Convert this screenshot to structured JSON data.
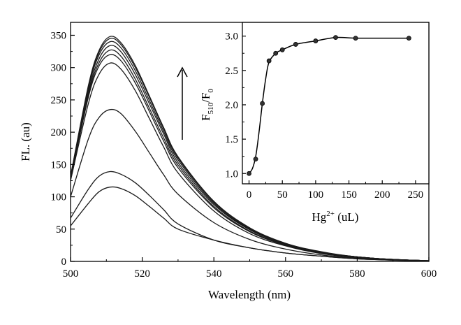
{
  "chart_data": [
    {
      "type": "line",
      "xlabel": "Wavelength (nm)",
      "ylabel": "FL. (au)",
      "xlim": [
        500,
        600
      ],
      "ylim": [
        0,
        370
      ],
      "xticks": [
        500,
        520,
        540,
        560,
        580,
        600
      ],
      "yticks": [
        0,
        50,
        100,
        150,
        200,
        250,
        300,
        350
      ],
      "grid": false,
      "legend": "none",
      "annotation": "upward arrow",
      "series_color": "#1a1a1a",
      "series": [
        {
          "x": [
            500,
            505,
            508,
            511,
            514,
            518,
            522,
            526,
            530,
            540,
            550,
            560,
            570,
            580,
            590,
            600
          ],
          "y": [
            55,
            90,
            108,
            115,
            113,
            102,
            85,
            67,
            50,
            33,
            21,
            13,
            8,
            4,
            2,
            1
          ]
        },
        {
          "x": [
            500,
            505,
            508,
            511,
            514,
            518,
            522,
            526,
            530,
            540,
            550,
            560,
            570,
            580,
            590,
            600
          ],
          "y": [
            67,
            112,
            132,
            139,
            135,
            122,
            102,
            80,
            58,
            33,
            21,
            13,
            8,
            4,
            2,
            1
          ]
        },
        {
          "x": [
            500,
            505,
            508,
            511,
            514,
            518,
            522,
            526,
            530,
            540,
            550,
            560,
            570,
            580,
            590,
            600
          ],
          "y": [
            100,
            190,
            223,
            235,
            229,
            202,
            168,
            134,
            104,
            60,
            34,
            19,
            10,
            5,
            2,
            1
          ]
        },
        {
          "x": [
            500,
            505,
            508,
            511,
            514,
            518,
            522,
            526,
            530,
            540,
            550,
            560,
            570,
            580,
            590,
            600
          ],
          "y": [
            125,
            245,
            290,
            307,
            298,
            265,
            221,
            177,
            137,
            78,
            43,
            24,
            12,
            6,
            3,
            1
          ]
        },
        {
          "x": [
            500,
            505,
            508,
            511,
            514,
            518,
            522,
            526,
            530,
            540,
            550,
            560,
            570,
            580,
            590,
            600
          ],
          "y": [
            128,
            255,
            303,
            320,
            311,
            277,
            232,
            186,
            145,
            83,
            46,
            25,
            13,
            6,
            3,
            1
          ]
        },
        {
          "x": [
            500,
            505,
            508,
            511,
            514,
            518,
            522,
            526,
            530,
            540,
            550,
            560,
            570,
            580,
            590,
            600
          ],
          "y": [
            129,
            259,
            308,
            327,
            318,
            283,
            237,
            191,
            149,
            85,
            47,
            26,
            13,
            7,
            3,
            1
          ]
        },
        {
          "x": [
            500,
            505,
            508,
            511,
            514,
            518,
            522,
            526,
            530,
            540,
            550,
            560,
            570,
            580,
            590,
            600
          ],
          "y": [
            130,
            263,
            314,
            334,
            325,
            290,
            244,
            197,
            153,
            88,
            49,
            27,
            14,
            7,
            3,
            1
          ]
        },
        {
          "x": [
            500,
            505,
            508,
            511,
            514,
            518,
            522,
            526,
            530,
            540,
            550,
            560,
            570,
            580,
            590,
            600
          ],
          "y": [
            131,
            268,
            320,
            340,
            331,
            296,
            249,
            201,
            157,
            90,
            50,
            27,
            14,
            7,
            3,
            1
          ]
        },
        {
          "x": [
            500,
            505,
            508,
            511,
            514,
            518,
            522,
            526,
            530,
            540,
            550,
            560,
            570,
            580,
            590,
            600
          ],
          "y": [
            131,
            271,
            324,
            345,
            336,
            301,
            254,
            205,
            160,
            92,
            51,
            28,
            14,
            7,
            3,
            1
          ]
        },
        {
          "x": [
            500,
            505,
            508,
            511,
            514,
            518,
            522,
            526,
            530,
            540,
            550,
            560,
            570,
            580,
            590,
            600
          ],
          "y": [
            132,
            273,
            327,
            348,
            339,
            304,
            256,
            207,
            162,
            93,
            52,
            28,
            15,
            7,
            3,
            1
          ]
        }
      ]
    },
    {
      "type": "scatter",
      "inset": true,
      "xlabel": "Hg",
      "xlabel_sup": "2+",
      "xlabel_tail": " (uL)",
      "ylabel": "F",
      "ylabel_sub1": "510",
      "ylabel_mid": "/F",
      "ylabel_sub2": "0",
      "xlim": [
        -10,
        270
      ],
      "ylim": [
        0.85,
        3.2
      ],
      "xticks": [
        0,
        50,
        100,
        150,
        200,
        250
      ],
      "yticks": [
        1.0,
        1.5,
        2.0,
        2.5,
        3.0
      ],
      "ytick_labels": [
        "1.0",
        "1.5",
        "2.0",
        "2.5",
        "3.0"
      ],
      "grid": false,
      "points": {
        "x": [
          0,
          10,
          20,
          30,
          40,
          50,
          70,
          100,
          130,
          160,
          240
        ],
        "y": [
          1.0,
          1.21,
          2.02,
          2.64,
          2.75,
          2.8,
          2.88,
          2.93,
          2.98,
          2.97,
          2.97
        ]
      },
      "fit_curve": {
        "x": [
          0,
          5,
          10,
          15,
          20,
          25,
          30,
          40,
          50,
          70,
          100,
          130,
          160,
          200,
          240
        ],
        "y": [
          1.0,
          1.07,
          1.25,
          1.6,
          2.02,
          2.38,
          2.62,
          2.75,
          2.8,
          2.88,
          2.93,
          2.98,
          2.97,
          2.97,
          2.97
        ]
      }
    }
  ]
}
